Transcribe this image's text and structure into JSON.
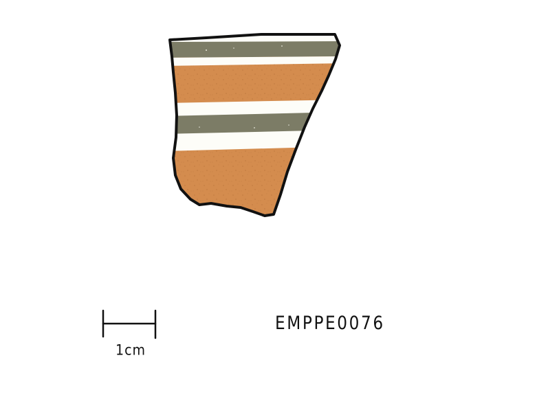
{
  "specimen": {
    "id_label": "EMPPE0076"
  },
  "scale_bar": {
    "label": "1cm"
  },
  "colors": {
    "background": "#ffffff",
    "outline": "#111111",
    "body_fabric": "#d48c4e",
    "dark_band": "#7c7c66",
    "light_band": "#fdfdf8"
  }
}
